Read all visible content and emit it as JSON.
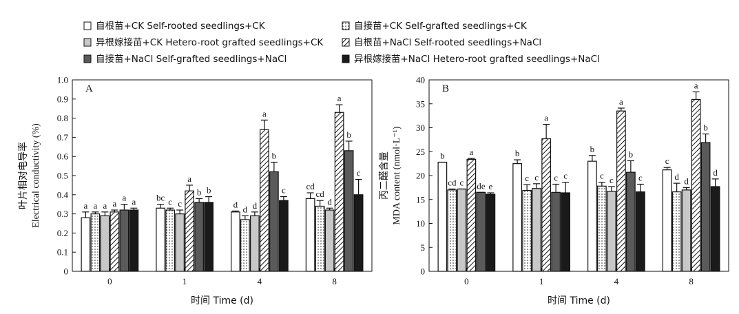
{
  "legend": [
    {
      "label": "自根苗+CK  Self-rooted seedlings+CK",
      "pattern": "white"
    },
    {
      "label": "自接苗+CK  Self-grafted seedlings+CK",
      "pattern": "dotted"
    },
    {
      "label": "异根嫁接苗+CK  Hetero-root grafted seedlings+CK",
      "pattern": "lightgray"
    },
    {
      "label": "自根苗+NaCl  Self-rooted seedlings+NaCl",
      "pattern": "hatched"
    },
    {
      "label": "自接苗+NaCl  Self-grafted seedlings+NaCl",
      "pattern": "darkgray"
    },
    {
      "label": "异根嫁接苗+NaCl  Hetero-root grafted seedlings+NaCl",
      "pattern": "black"
    }
  ],
  "colors": {
    "white": "#ffffff",
    "lightgray": "#c8c8c8",
    "darkgray": "#5a5a5a",
    "black": "#1a1a1a",
    "axis": "#111111"
  },
  "chart_data": [
    {
      "type": "bar",
      "panel_label": "A",
      "ylabel_cn": "叶片相对电导率",
      "ylabel_en": "Electrical conductivity (%)",
      "xlabel": "时间 Time (d)",
      "categories": [
        "0",
        "1",
        "4",
        "8"
      ],
      "ylim": [
        0,
        1.0
      ],
      "yticks": [
        "0",
        "0.1",
        "0.2",
        "0.3",
        "0.4",
        "0.5",
        "0.6",
        "0.7",
        "0.8",
        "0.9",
        "1.0"
      ],
      "series": [
        {
          "name": "自根苗+CK  Self-rooted seedlings+CK",
          "values": [
            0.28,
            0.33,
            0.31,
            0.38
          ],
          "errors": [
            0.03,
            0.02,
            0.005,
            0.03
          ],
          "letters": [
            "a",
            "bc",
            "d",
            "cd"
          ]
        },
        {
          "name": "自接苗+CK  Self-grafted seedlings+CK",
          "values": [
            0.3,
            0.32,
            0.27,
            0.34
          ],
          "errors": [
            0.01,
            0.01,
            0.02,
            0.03
          ],
          "letters": [
            "a",
            "c",
            "d",
            "cd"
          ]
        },
        {
          "name": "异根嫁接苗+CK  Hetero-root grafted seedlings+CK",
          "values": [
            0.29,
            0.3,
            0.29,
            0.32
          ],
          "errors": [
            0.02,
            0.02,
            0.02,
            0.01
          ],
          "letters": [
            "a",
            "c",
            "d",
            "d"
          ]
        },
        {
          "name": "自根苗+NaCl  Self-rooted seedlings+NaCl",
          "values": [
            0.31,
            0.42,
            0.74,
            0.83
          ],
          "errors": [
            0.01,
            0.03,
            0.05,
            0.04
          ],
          "letters": [
            "a",
            "a",
            "a",
            "a"
          ]
        },
        {
          "name": "自接苗+NaCl  Self-grafted seedlings+NaCl",
          "values": [
            0.32,
            0.36,
            0.52,
            0.63
          ],
          "errors": [
            0.03,
            0.02,
            0.05,
            0.05
          ],
          "letters": [
            "a",
            "b",
            "b",
            "b"
          ]
        },
        {
          "name": "异根嫁接苗+NaCl  Hetero-root grafted seedlings+NaCl",
          "values": [
            0.32,
            0.36,
            0.37,
            0.4
          ],
          "errors": [
            0.01,
            0.03,
            0.02,
            0.08
          ],
          "letters": [
            "a",
            "b",
            "c",
            "c"
          ]
        }
      ]
    },
    {
      "type": "bar",
      "panel_label": "B",
      "ylabel_cn": "丙二醛含量",
      "ylabel_en": "MDA content (nmol·L⁻¹)",
      "xlabel": "时间 Time (d)",
      "categories": [
        "0",
        "1",
        "4",
        "8"
      ],
      "ylim": [
        0,
        40
      ],
      "yticks": [
        "0",
        "5",
        "10",
        "15",
        "20",
        "25",
        "30",
        "35",
        "40"
      ],
      "series": [
        {
          "name": "自根苗+CK  Self-rooted seedlings+CK",
          "values": [
            22.8,
            22.5,
            23.0,
            21.2
          ],
          "errors": [
            0,
            0.8,
            1.2,
            0.5
          ],
          "letters": [
            "b",
            "b",
            "b",
            "c"
          ]
        },
        {
          "name": "自接苗+CK  Self-grafted seedlings+CK",
          "values": [
            17.0,
            16.9,
            17.8,
            16.6
          ],
          "errors": [
            0.2,
            1.2,
            0.8,
            1.8
          ],
          "letters": [
            "cd",
            "c",
            "c",
            "d"
          ]
        },
        {
          "name": "异根嫁接苗+CK  Hetero-root grafted seedlings+CK",
          "values": [
            17.2,
            17.3,
            16.7,
            17.0
          ],
          "errors": [
            0,
            1.0,
            1.0,
            0.5
          ],
          "letters": [
            "c",
            "c",
            "c",
            "d"
          ]
        },
        {
          "name": "自根苗+NaCl  Self-rooted seedlings+NaCl",
          "values": [
            23.4,
            27.7,
            33.5,
            35.9
          ],
          "errors": [
            0.2,
            3.0,
            0.6,
            1.6
          ],
          "letters": [
            "a",
            "a",
            "a",
            "a"
          ]
        },
        {
          "name": "自接苗+NaCl  Self-grafted seedlings+NaCl",
          "values": [
            16.5,
            16.5,
            20.7,
            26.9
          ],
          "errors": [
            0,
            1.7,
            2.4,
            1.8
          ],
          "letters": [
            "de",
            "c",
            "b",
            "b"
          ]
        },
        {
          "name": "异根嫁接苗+NaCl  Hetero-root grafted seedlings+NaCl",
          "values": [
            16.1,
            16.4,
            16.6,
            17.7
          ],
          "errors": [
            0.3,
            2.2,
            1.6,
            1.6
          ],
          "letters": [
            "e",
            "c",
            "c",
            "d"
          ]
        }
      ]
    }
  ]
}
